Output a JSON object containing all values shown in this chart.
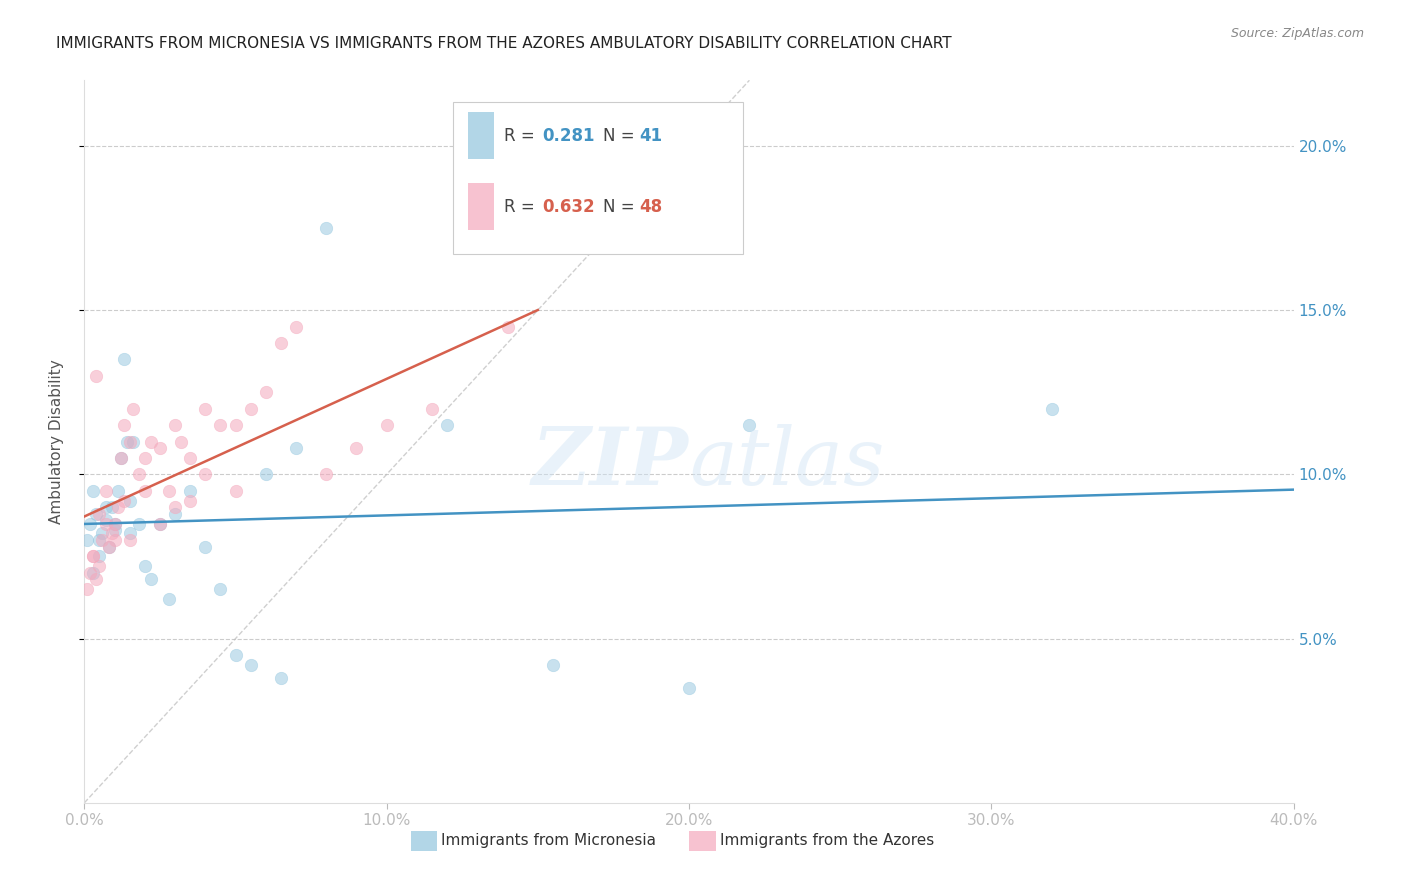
{
  "title": "IMMIGRANTS FROM MICRONESIA VS IMMIGRANTS FROM THE AZORES AMBULATORY DISABILITY CORRELATION CHART",
  "source": "Source: ZipAtlas.com",
  "ylabel": "Ambulatory Disability",
  "xlim": [
    0,
    40
  ],
  "ylim": [
    0,
    22
  ],
  "yticks": [
    5,
    10,
    15,
    20
  ],
  "xticks": [
    0,
    10,
    20,
    30,
    40
  ],
  "xtick_labels": [
    "0.0%",
    "10.0%",
    "20.0%",
    "30.0%",
    "40.0%"
  ],
  "ytick_labels": [
    "5.0%",
    "10.0%",
    "15.0%",
    "20.0%"
  ],
  "watermark": "ZIP atlas",
  "legend_r1": "0.281",
  "legend_n1": "41",
  "legend_r2": "0.632",
  "legend_n2": "48",
  "blue_color": "#92c5de",
  "pink_color": "#f4a8bc",
  "blue_line_color": "#4393c3",
  "pink_line_color": "#d6604d",
  "micronesia_x": [
    0.1,
    0.2,
    0.3,
    0.4,
    0.5,
    0.6,
    0.7,
    0.8,
    0.9,
    1.0,
    1.1,
    1.2,
    1.3,
    1.4,
    1.5,
    1.6,
    1.8,
    2.0,
    2.2,
    2.5,
    2.8,
    3.0,
    3.5,
    4.0,
    4.5,
    5.0,
    5.5,
    6.0,
    6.5,
    7.0,
    8.0,
    12.0,
    15.5,
    20.0,
    22.0,
    32.0,
    0.3,
    0.5,
    0.7,
    1.0,
    1.5
  ],
  "micronesia_y": [
    8.0,
    8.5,
    7.0,
    8.8,
    7.5,
    8.2,
    8.6,
    7.8,
    9.0,
    8.3,
    9.5,
    10.5,
    13.5,
    11.0,
    9.2,
    11.0,
    8.5,
    7.2,
    6.8,
    8.5,
    6.2,
    8.8,
    9.5,
    7.8,
    6.5,
    4.5,
    4.2,
    10.0,
    3.8,
    10.8,
    17.5,
    11.5,
    4.2,
    3.5,
    11.5,
    12.0,
    9.5,
    8.0,
    9.0,
    8.5,
    8.2
  ],
  "azores_x": [
    0.1,
    0.2,
    0.3,
    0.4,
    0.5,
    0.6,
    0.7,
    0.8,
    0.9,
    1.0,
    1.1,
    1.2,
    1.3,
    1.5,
    1.6,
    1.8,
    2.0,
    2.2,
    2.5,
    2.8,
    3.0,
    3.2,
    3.5,
    4.0,
    4.5,
    5.0,
    5.5,
    6.0,
    6.5,
    7.0,
    8.0,
    9.0,
    10.0,
    11.5,
    14.0,
    0.3,
    0.5,
    0.7,
    1.0,
    1.3,
    1.5,
    2.0,
    2.5,
    3.0,
    3.5,
    4.0,
    5.0,
    0.4
  ],
  "azores_y": [
    6.5,
    7.0,
    7.5,
    6.8,
    7.2,
    8.0,
    8.5,
    7.8,
    8.2,
    8.5,
    9.0,
    10.5,
    11.5,
    11.0,
    12.0,
    10.0,
    10.5,
    11.0,
    10.8,
    9.5,
    11.5,
    11.0,
    10.5,
    12.0,
    11.5,
    11.5,
    12.0,
    12.5,
    14.0,
    14.5,
    10.0,
    10.8,
    11.5,
    12.0,
    14.5,
    7.5,
    8.8,
    9.5,
    8.0,
    9.2,
    8.0,
    9.5,
    8.5,
    9.0,
    9.2,
    10.0,
    9.5,
    13.0
  ]
}
